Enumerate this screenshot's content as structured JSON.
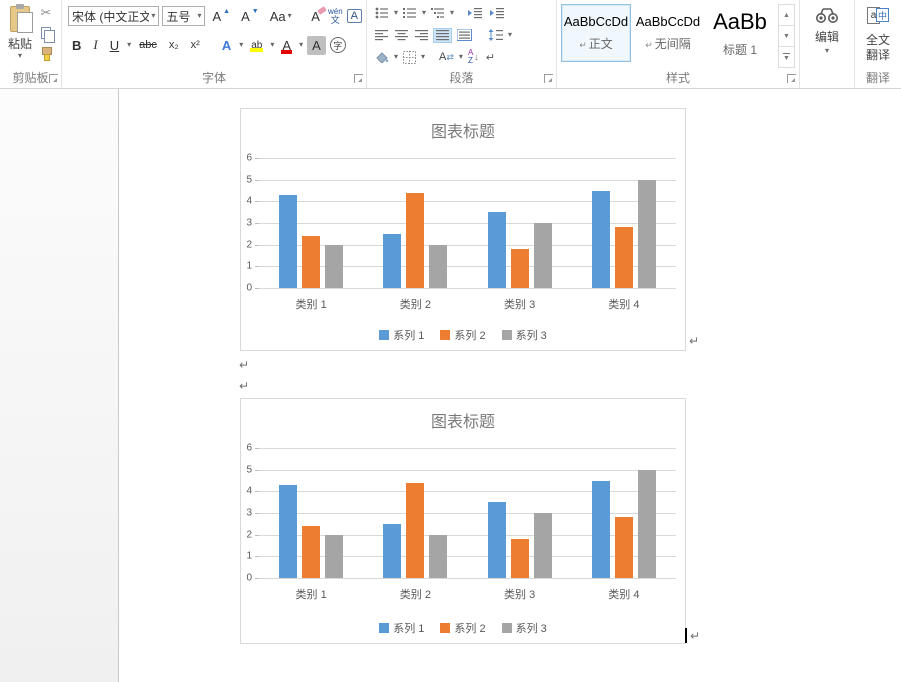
{
  "ribbon": {
    "clipboard": {
      "group_label": "剪贴板",
      "paste_label": "粘贴"
    },
    "font": {
      "group_label": "字体",
      "name_value": "宋体 (中文正文)",
      "size_value": "五号",
      "grow": "A",
      "shrink": "A",
      "case_btn": "Aa",
      "clear": "A",
      "pinyin_top": "wén",
      "pinyin_bottom": "文",
      "char_border": "A",
      "bold": "B",
      "italic": "I",
      "underline": "U",
      "strike": "abc",
      "subscript": "x₂",
      "superscript": "x²",
      "effects": "A",
      "highlight": "ab",
      "font_color": "A",
      "char_shading": "A",
      "enclose": "字"
    },
    "paragraph": {
      "group_label": "段落",
      "scale_letter": "A",
      "sort_a": "A",
      "sort_z": "Z"
    },
    "styles": {
      "group_label": "样式",
      "items": [
        {
          "sample": "AaBbCcDd",
          "mark": "↵",
          "name": "正文",
          "selected": true,
          "big": false
        },
        {
          "sample": "AaBbCcDd",
          "mark": "↵",
          "name": "无间隔",
          "selected": false,
          "big": false
        },
        {
          "sample": "AaBb",
          "mark": "",
          "name": "标题 1",
          "selected": false,
          "big": true
        }
      ]
    },
    "editing": {
      "button_label": "编辑"
    },
    "translate": {
      "group_label": "翻译",
      "button_line1": "全文",
      "button_line2": "翻译",
      "icon_a": "a",
      "icon_zh": "中"
    }
  },
  "document": {
    "pilcrow": "↵"
  },
  "chart_data": [
    {
      "type": "bar",
      "title": "图表标题",
      "categories": [
        "类别 1",
        "类别 2",
        "类别 3",
        "类别 4"
      ],
      "series": [
        {
          "name": "系列 1",
          "color": "#5B9BD5",
          "values": [
            4.3,
            2.5,
            3.5,
            4.5
          ]
        },
        {
          "name": "系列 2",
          "color": "#ED7D31",
          "values": [
            2.4,
            4.4,
            1.8,
            2.8
          ]
        },
        {
          "name": "系列 3",
          "color": "#A5A5A5",
          "values": [
            2,
            2,
            3,
            5
          ]
        }
      ],
      "ylim": [
        0,
        6
      ],
      "yticks": [
        0,
        1,
        2,
        3,
        4,
        5,
        6
      ],
      "grid": true,
      "legend_position": "bottom",
      "xlabel": "",
      "ylabel": ""
    },
    {
      "type": "bar",
      "title": "图表标题",
      "categories": [
        "类别 1",
        "类别 2",
        "类别 3",
        "类别 4"
      ],
      "series": [
        {
          "name": "系列 1",
          "color": "#5B9BD5",
          "values": [
            4.3,
            2.5,
            3.5,
            4.5
          ]
        },
        {
          "name": "系列 2",
          "color": "#ED7D31",
          "values": [
            2.4,
            4.4,
            1.8,
            2.8
          ]
        },
        {
          "name": "系列 3",
          "color": "#A5A5A5",
          "values": [
            2,
            2,
            3,
            5
          ]
        }
      ],
      "ylim": [
        0,
        6
      ],
      "yticks": [
        0,
        1,
        2,
        3,
        4,
        5,
        6
      ],
      "grid": true,
      "legend_position": "bottom",
      "xlabel": "",
      "ylabel": ""
    }
  ]
}
